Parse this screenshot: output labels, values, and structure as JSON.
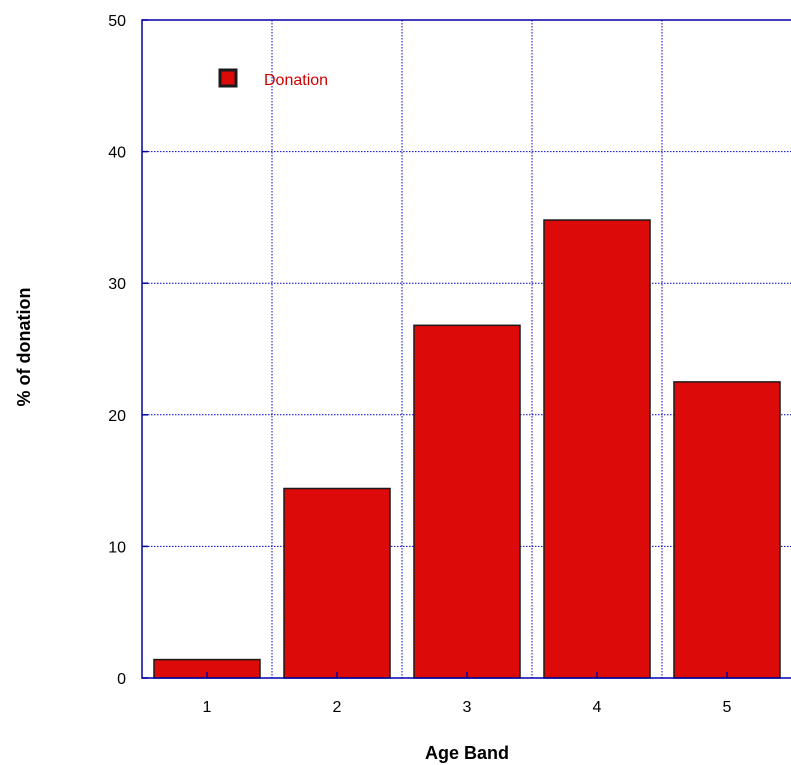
{
  "chart_data": {
    "type": "bar",
    "categories": [
      "1",
      "2",
      "3",
      "4",
      "5"
    ],
    "series": [
      {
        "name": "Donation",
        "values": [
          1.4,
          14.4,
          26.8,
          34.8,
          22.5
        ]
      }
    ],
    "title": "",
    "xlabel": "Age Band",
    "ylabel": "% of donation",
    "ylim": [
      0,
      50
    ],
    "yticks": [
      0,
      10,
      20,
      30,
      40,
      50
    ],
    "grid": true,
    "legend": "top-left",
    "colors": {
      "bar": "#dd0a0a",
      "bar_stroke": "#1a1a1a",
      "axis": "#0000aa",
      "grid": "#0000cc",
      "legend_text": "#cc0000"
    }
  }
}
